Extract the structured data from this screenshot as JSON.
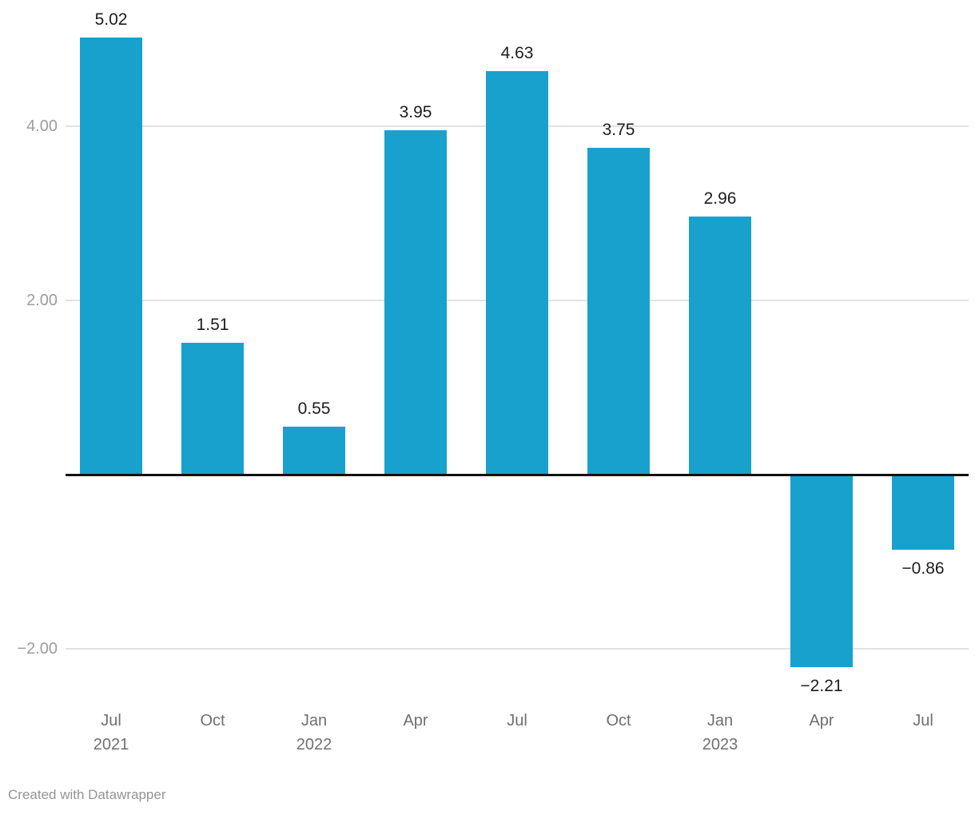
{
  "chart_data": {
    "type": "bar",
    "title": "",
    "xlabel": "",
    "ylabel": "",
    "bar_color": "#18a1cd",
    "grid": true,
    "legend_position": "none",
    "ylim": [
      -2.6,
      5.45
    ],
    "categories": [
      "Jul 2021",
      "Oct",
      "Jan 2022",
      "Apr",
      "Jul",
      "Oct",
      "Jan 2023",
      "Apr",
      "Jul"
    ],
    "x_tick_lines": [
      [
        "Jul",
        "2021"
      ],
      [
        "Oct",
        ""
      ],
      [
        "Jan",
        "2022"
      ],
      [
        "Apr",
        ""
      ],
      [
        "Jul",
        ""
      ],
      [
        "Oct",
        ""
      ],
      [
        "Jan",
        "2023"
      ],
      [
        "Apr",
        ""
      ],
      [
        "Jul",
        ""
      ]
    ],
    "values": [
      5.02,
      1.51,
      0.55,
      3.95,
      4.63,
      3.75,
      2.96,
      -2.21,
      -0.86
    ],
    "value_labels": [
      "5.02",
      "1.51",
      "0.55",
      "3.95",
      "4.63",
      "3.75",
      "2.96",
      "−2.21",
      "−0.86"
    ],
    "y_ticks": [
      {
        "value": 4,
        "label": "4.00"
      },
      {
        "value": 2,
        "label": "2.00"
      },
      {
        "value": -2,
        "label": "−2.00"
      }
    ],
    "zero_line": true
  },
  "colors": {
    "bar": "#18a1cd",
    "gridline": "#e2e2e2",
    "zero_line": "#111111",
    "value_label": "#1d1d1d",
    "y_tick_label": "#9d9d9d",
    "x_tick_label": "#6f6f6f",
    "footer": "#949494",
    "background": "#ffffff"
  },
  "footer": {
    "credit": "Created with Datawrapper"
  }
}
